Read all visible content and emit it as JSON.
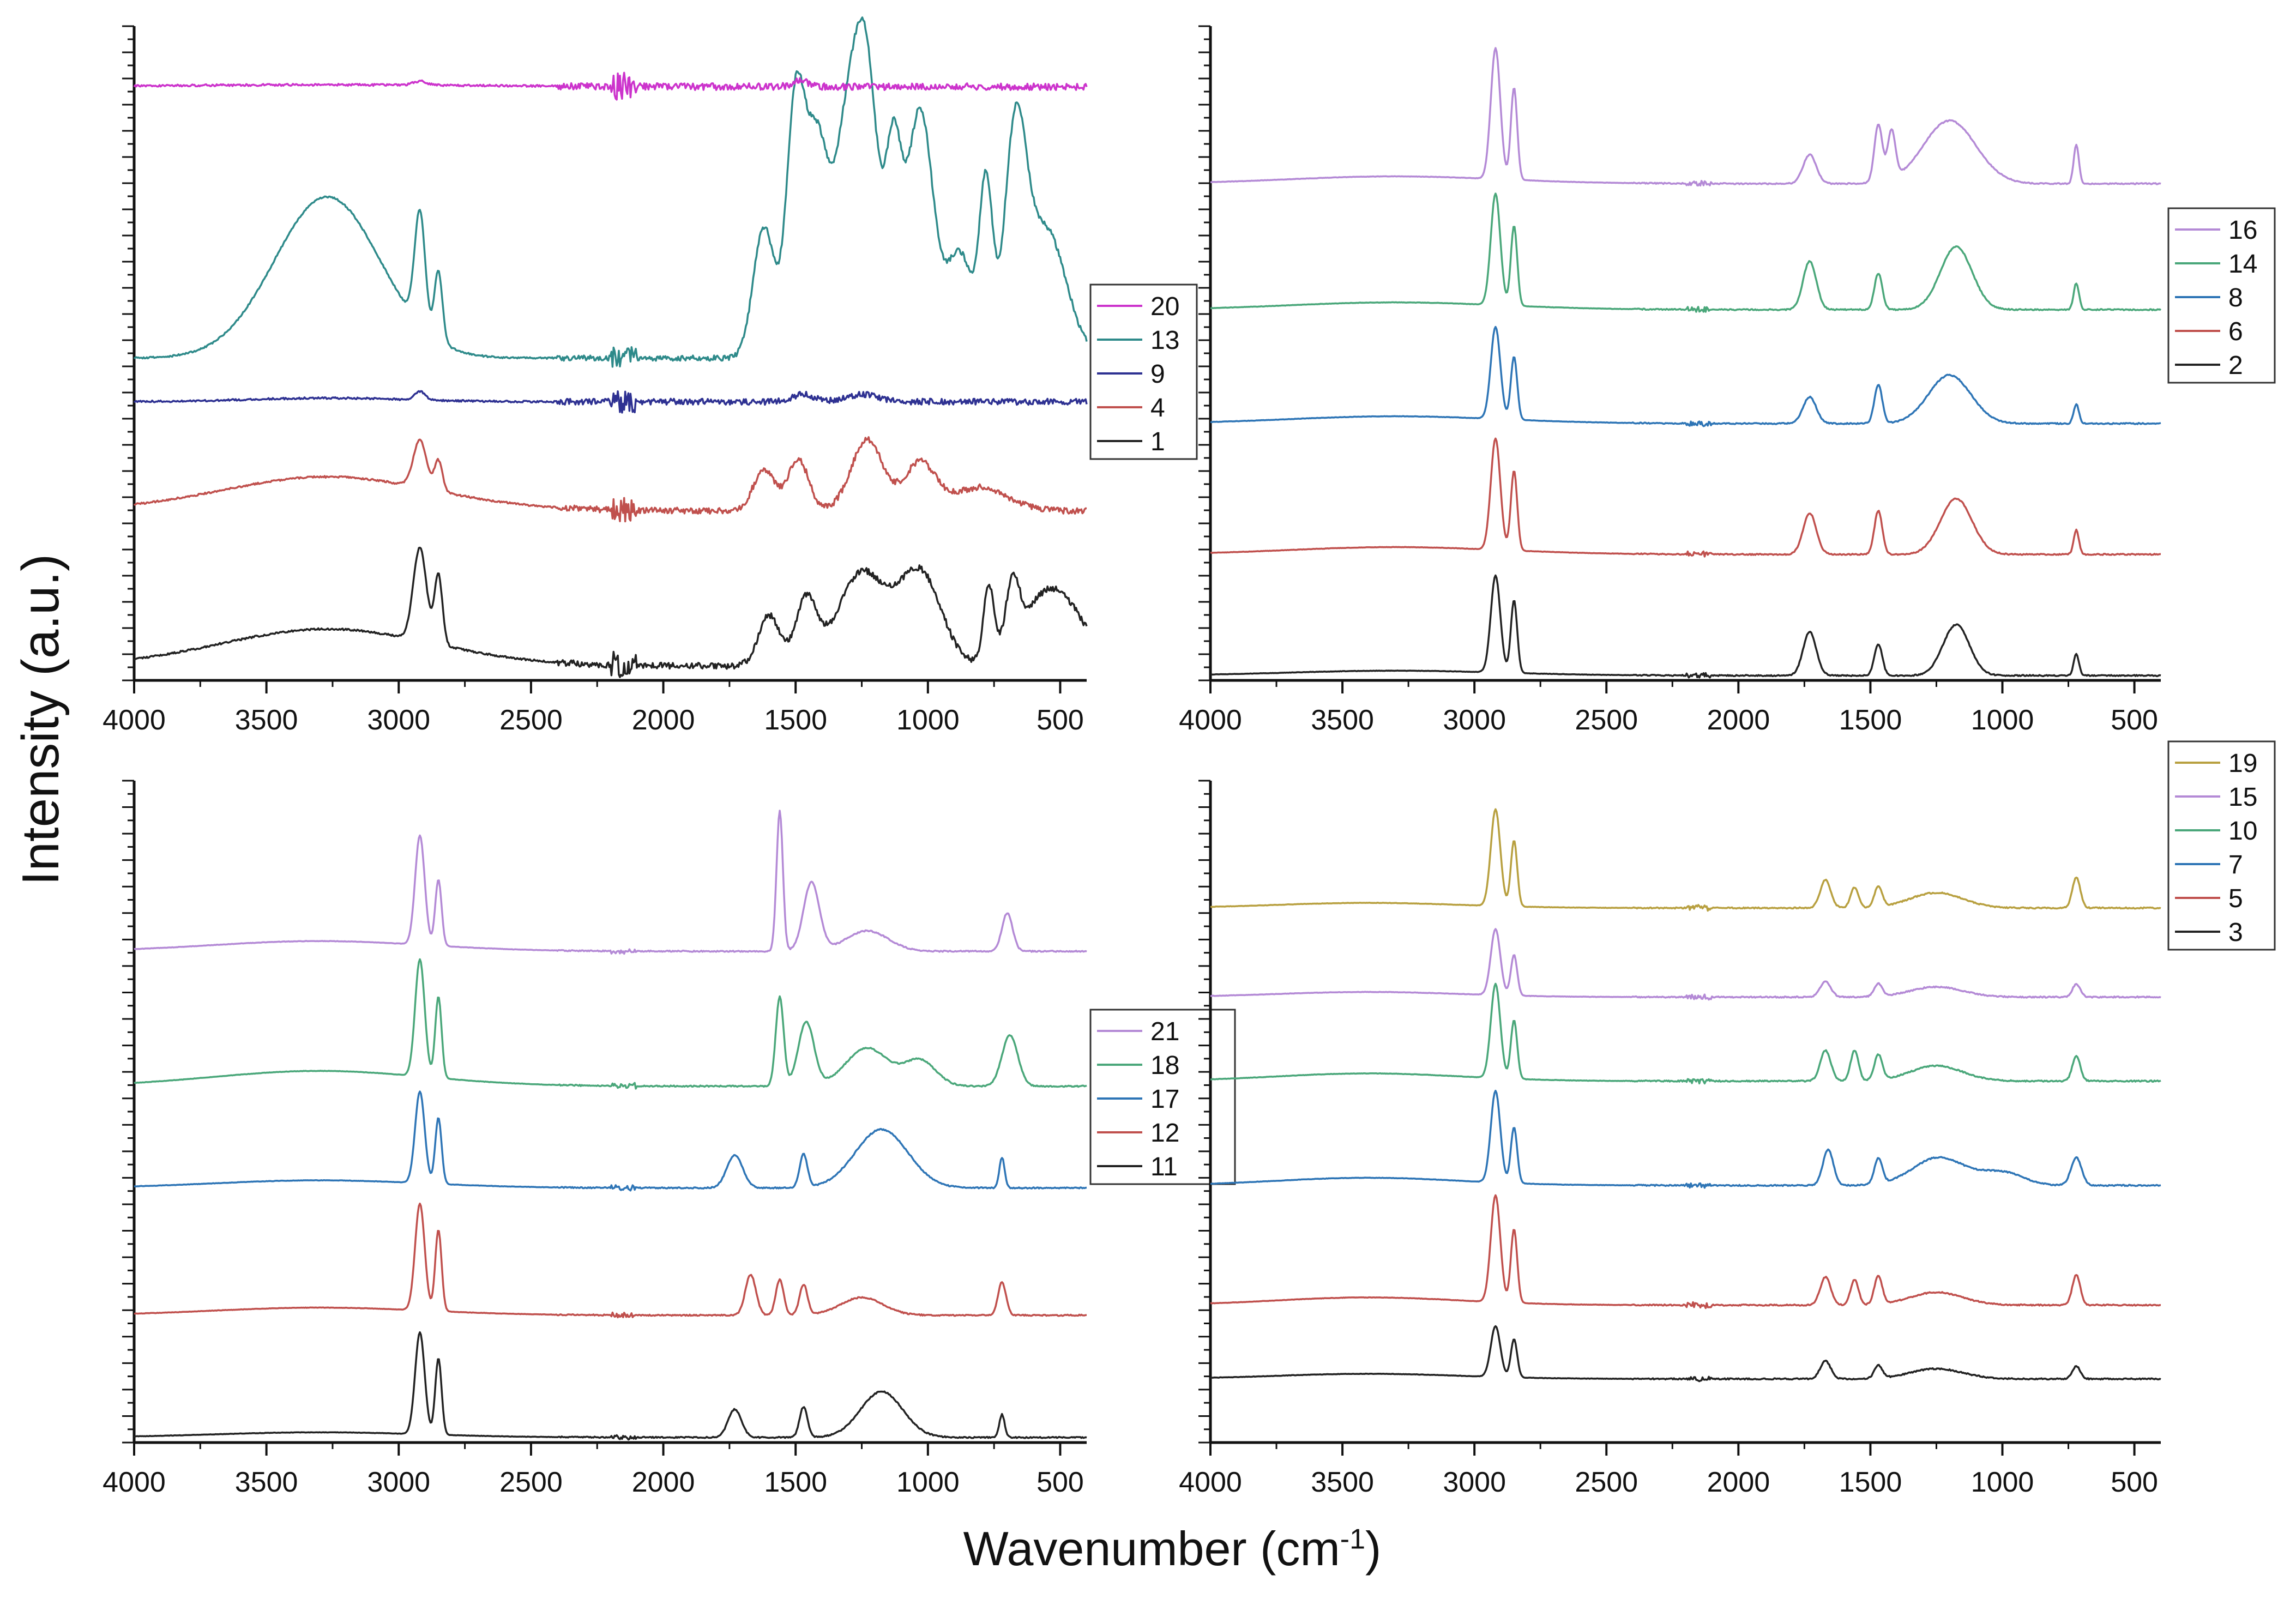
{
  "figure": {
    "ylabel": "Intensity (a.u.)",
    "xlabel_main": "Wavenumber (cm",
    "xlabel_sup": "-1",
    "xlabel_close": ")"
  },
  "chart_data": [
    {
      "type": "line",
      "panel": "top-left",
      "title": "",
      "xlabel": "Wavenumber (cm-1)",
      "ylabel": "Intensity (a.u.)",
      "xlim": [
        4000,
        400
      ],
      "ylim": [
        0,
        27
      ],
      "x_reversed": true,
      "x_ticks": [
        4000,
        3500,
        3000,
        2500,
        2000,
        1500,
        1000,
        500
      ],
      "y_tick_labels": false,
      "legend_position": "right-middle",
      "legend_order": [
        "20",
        "13",
        "9",
        "4",
        "1"
      ],
      "series": [
        {
          "name": "1",
          "color": "#222222",
          "baseline": 0.6,
          "scale": 1.6,
          "noise": 0.25,
          "peaks": [
            [
              3270,
              400,
              0.95
            ],
            [
              2920,
              25,
              2.4
            ],
            [
              2850,
              15,
              1.8
            ],
            [
              1600,
              40,
              1.3
            ],
            [
              1460,
              40,
              1.7
            ],
            [
              1250,
              90,
              2.4
            ],
            [
              1030,
              80,
              2.4
            ],
            [
              770,
              20,
              1.9
            ],
            [
              680,
              25,
              1.6
            ],
            [
              530,
              110,
              2.0
            ]
          ]
        },
        {
          "name": "4",
          "color": "#c0504d",
          "baseline": 7.0,
          "scale": 1.4,
          "noise": 0.25,
          "peaks": [
            [
              3270,
              400,
              1.0
            ],
            [
              2920,
              25,
              1.4
            ],
            [
              2850,
              15,
              0.9
            ],
            [
              1620,
              40,
              1.2
            ],
            [
              1490,
              40,
              1.5
            ],
            [
              1230,
              60,
              2.1
            ],
            [
              1030,
              60,
              1.4
            ],
            [
              800,
              100,
              0.7
            ]
          ]
        },
        {
          "name": "9",
          "color": "#2e3192",
          "baseline": 11.5,
          "scale": 1.0,
          "noise": 0.25,
          "peaks": [
            [
              3270,
              300,
              0.15
            ],
            [
              2920,
              20,
              0.35
            ],
            [
              1470,
              40,
              0.3
            ],
            [
              1250,
              60,
              0.3
            ]
          ]
        },
        {
          "name": "13",
          "color": "#2e8a8a",
          "baseline": 13.3,
          "scale": 1.8,
          "noise": 0.22,
          "peaks": [
            [
              3270,
              200,
              3.7
            ],
            [
              2920,
              20,
              2.6
            ],
            [
              2850,
              15,
              1.6
            ],
            [
              1620,
              40,
              3.0
            ],
            [
              1500,
              35,
              5.8
            ],
            [
              1420,
              40,
              4.6
            ],
            [
              1310,
              50,
              4.8
            ],
            [
              1230,
              45,
              6.0
            ],
            [
              1130,
              30,
              4.2
            ],
            [
              1030,
              50,
              5.7
            ],
            [
              880,
              50,
              2.4
            ],
            [
              780,
              25,
              3.8
            ],
            [
              670,
              40,
              4.6
            ],
            [
              560,
              80,
              3.0
            ]
          ]
        },
        {
          "name": "20",
          "color": "#cc33cc",
          "baseline": 24.5,
          "scale": 0.8,
          "noise": 0.28,
          "peaks": [
            [
              3270,
              600,
              0.1
            ],
            [
              2920,
              25,
              0.2
            ],
            [
              1480,
              30,
              0.3
            ]
          ]
        }
      ]
    },
    {
      "type": "line",
      "panel": "top-right",
      "title": "",
      "xlabel": "Wavenumber (cm-1)",
      "ylabel": "Intensity (a.u.)",
      "xlim": [
        4000,
        400
      ],
      "ylim": [
        0,
        27
      ],
      "x_reversed": true,
      "x_ticks": [
        4000,
        3500,
        3000,
        2500,
        2000,
        1500,
        1000,
        500
      ],
      "y_tick_labels": false,
      "legend_position": "right-upper",
      "legend_order": [
        "16",
        "14",
        "8",
        "6",
        "2"
      ],
      "series": [
        {
          "name": "2",
          "color": "#222222",
          "baseline": 0.2,
          "scale": 1.0,
          "noise": 0.05,
          "peaks": [
            [
              3300,
              400,
              0.2
            ],
            [
              2920,
              18,
              4.0
            ],
            [
              2850,
              12,
              3.0
            ],
            [
              1730,
              25,
              1.8
            ],
            [
              1470,
              15,
              1.3
            ],
            [
              1175,
              50,
              2.1
            ],
            [
              720,
              10,
              0.9
            ]
          ]
        },
        {
          "name": "6",
          "color": "#c0504d",
          "baseline": 5.2,
          "scale": 1.0,
          "noise": 0.05,
          "peaks": [
            [
              3300,
              400,
              0.3
            ],
            [
              2920,
              18,
              4.6
            ],
            [
              2850,
              12,
              3.3
            ],
            [
              1730,
              25,
              1.7
            ],
            [
              1470,
              15,
              1.8
            ],
            [
              1175,
              60,
              2.3
            ],
            [
              720,
              10,
              1.0
            ]
          ]
        },
        {
          "name": "8",
          "color": "#2e75b6",
          "baseline": 10.6,
          "scale": 1.0,
          "noise": 0.05,
          "peaks": [
            [
              3300,
              400,
              0.3
            ],
            [
              2920,
              18,
              3.8
            ],
            [
              2850,
              12,
              2.6
            ],
            [
              1730,
              25,
              1.1
            ],
            [
              1470,
              15,
              1.6
            ],
            [
              1200,
              80,
              2.0
            ],
            [
              720,
              10,
              0.8
            ]
          ]
        },
        {
          "name": "14",
          "color": "#4aa77a",
          "baseline": 15.3,
          "scale": 1.0,
          "noise": 0.05,
          "peaks": [
            [
              3300,
              400,
              0.3
            ],
            [
              2920,
              18,
              4.6
            ],
            [
              2850,
              12,
              3.3
            ],
            [
              1730,
              25,
              2.0
            ],
            [
              1470,
              15,
              1.5
            ],
            [
              1175,
              60,
              2.6
            ],
            [
              720,
              10,
              1.1
            ]
          ]
        },
        {
          "name": "16",
          "color": "#b48ad6",
          "baseline": 20.5,
          "scale": 1.0,
          "noise": 0.05,
          "peaks": [
            [
              3300,
              400,
              0.3
            ],
            [
              2920,
              18,
              5.4
            ],
            [
              2850,
              12,
              3.8
            ],
            [
              1730,
              25,
              1.2
            ],
            [
              1470,
              15,
              2.4
            ],
            [
              1420,
              15,
              2.0
            ],
            [
              1200,
              100,
              2.6
            ],
            [
              720,
              10,
              1.6
            ]
          ]
        }
      ]
    },
    {
      "type": "line",
      "panel": "bottom-left",
      "title": "",
      "xlabel": "Wavenumber (cm-1)",
      "ylabel": "Intensity (a.u.)",
      "xlim": [
        4000,
        400
      ],
      "ylim": [
        0,
        26
      ],
      "x_reversed": true,
      "x_ticks": [
        4000,
        3500,
        3000,
        2500,
        2000,
        1500,
        1000,
        500
      ],
      "y_tick_labels": false,
      "legend_position": "right-middle",
      "legend_order": [
        "21",
        "18",
        "17",
        "12",
        "11"
      ],
      "series": [
        {
          "name": "11",
          "color": "#222222",
          "baseline": 0.2,
          "scale": 1.0,
          "noise": 0.05,
          "peaks": [
            [
              3300,
              400,
              0.2
            ],
            [
              2920,
              18,
              4.0
            ],
            [
              2850,
              12,
              3.0
            ],
            [
              1730,
              25,
              1.1
            ],
            [
              1470,
              15,
              1.2
            ],
            [
              1175,
              80,
              1.8
            ],
            [
              720,
              10,
              0.9
            ]
          ]
        },
        {
          "name": "12",
          "color": "#c0504d",
          "baseline": 5.0,
          "scale": 1.0,
          "noise": 0.05,
          "peaks": [
            [
              3300,
              400,
              0.3
            ],
            [
              2920,
              18,
              4.2
            ],
            [
              2850,
              12,
              3.2
            ],
            [
              1670,
              20,
              1.6
            ],
            [
              1560,
              15,
              1.4
            ],
            [
              1470,
              15,
              1.2
            ],
            [
              1250,
              80,
              0.7
            ],
            [
              720,
              15,
              1.3
            ]
          ]
        },
        {
          "name": "17",
          "color": "#2e75b6",
          "baseline": 10.0,
          "scale": 1.0,
          "noise": 0.05,
          "peaks": [
            [
              3300,
              400,
              0.3
            ],
            [
              2920,
              18,
              3.6
            ],
            [
              2850,
              12,
              2.6
            ],
            [
              1730,
              30,
              1.3
            ],
            [
              1470,
              15,
              1.3
            ],
            [
              1175,
              100,
              2.3
            ],
            [
              720,
              10,
              1.2
            ]
          ]
        },
        {
          "name": "18",
          "color": "#4aa77a",
          "baseline": 14.0,
          "scale": 1.0,
          "noise": 0.05,
          "peaks": [
            [
              3300,
              400,
              0.6
            ],
            [
              2920,
              18,
              4.6
            ],
            [
              2850,
              12,
              3.2
            ],
            [
              1560,
              15,
              3.5
            ],
            [
              1460,
              30,
              2.5
            ],
            [
              1230,
              80,
              1.5
            ],
            [
              1030,
              60,
              1.0
            ],
            [
              690,
              30,
              2.0
            ]
          ]
        },
        {
          "name": "21",
          "color": "#b48ad6",
          "baseline": 19.3,
          "scale": 1.0,
          "noise": 0.05,
          "peaks": [
            [
              3300,
              400,
              0.4
            ],
            [
              2920,
              18,
              4.3
            ],
            [
              2850,
              12,
              2.6
            ],
            [
              1560,
              12,
              5.5
            ],
            [
              1440,
              30,
              2.7
            ],
            [
              1230,
              80,
              0.8
            ],
            [
              700,
              20,
              1.5
            ]
          ]
        }
      ]
    },
    {
      "type": "line",
      "panel": "bottom-right",
      "title": "",
      "xlabel": "Wavenumber (cm-1)",
      "ylabel": "Intensity (a.u.)",
      "xlim": [
        4000,
        400
      ],
      "ylim": [
        0,
        26
      ],
      "x_reversed": true,
      "x_ticks": [
        4000,
        3500,
        3000,
        2500,
        2000,
        1500,
        1000,
        500
      ],
      "y_tick_labels": false,
      "legend_position": "top-right",
      "legend_order": [
        "19",
        "15",
        "10",
        "7",
        "5",
        "3"
      ],
      "series": [
        {
          "name": "3",
          "color": "#222222",
          "baseline": 2.5,
          "scale": 1.0,
          "noise": 0.05,
          "peaks": [
            [
              3400,
              350,
              0.2
            ],
            [
              2920,
              18,
              2.0
            ],
            [
              2850,
              12,
              1.5
            ],
            [
              1670,
              20,
              0.7
            ],
            [
              1470,
              15,
              0.5
            ],
            [
              1250,
              100,
              0.4
            ],
            [
              720,
              15,
              0.5
            ]
          ]
        },
        {
          "name": "5",
          "color": "#c0504d",
          "baseline": 5.4,
          "scale": 1.0,
          "noise": 0.05,
          "peaks": [
            [
              3400,
              350,
              0.3
            ],
            [
              2920,
              18,
              4.2
            ],
            [
              2850,
              12,
              2.9
            ],
            [
              1670,
              20,
              1.1
            ],
            [
              1560,
              15,
              1.0
            ],
            [
              1470,
              15,
              1.1
            ],
            [
              1250,
              100,
              0.5
            ],
            [
              720,
              15,
              1.2
            ]
          ]
        },
        {
          "name": "7",
          "color": "#2e75b6",
          "baseline": 10.1,
          "scale": 1.0,
          "noise": 0.05,
          "peaks": [
            [
              3400,
              350,
              0.3
            ],
            [
              2920,
              18,
              3.6
            ],
            [
              2850,
              12,
              2.2
            ],
            [
              1660,
              20,
              1.4
            ],
            [
              1470,
              15,
              1.0
            ],
            [
              1240,
              100,
              1.1
            ],
            [
              1000,
              80,
              0.5
            ],
            [
              720,
              20,
              1.1
            ]
          ]
        },
        {
          "name": "10",
          "color": "#4aa77a",
          "baseline": 14.2,
          "scale": 1.0,
          "noise": 0.05,
          "peaks": [
            [
              3400,
              350,
              0.3
            ],
            [
              2920,
              18,
              3.7
            ],
            [
              2850,
              12,
              2.3
            ],
            [
              1670,
              20,
              1.2
            ],
            [
              1560,
              15,
              1.2
            ],
            [
              1470,
              15,
              1.0
            ],
            [
              1250,
              100,
              0.6
            ],
            [
              720,
              15,
              1.0
            ]
          ]
        },
        {
          "name": "15",
          "color": "#b48ad6",
          "baseline": 17.5,
          "scale": 1.0,
          "noise": 0.05,
          "peaks": [
            [
              3400,
              350,
              0.2
            ],
            [
              2920,
              18,
              2.6
            ],
            [
              2850,
              12,
              1.6
            ],
            [
              1670,
              20,
              0.6
            ],
            [
              1470,
              15,
              0.5
            ],
            [
              1250,
              100,
              0.4
            ],
            [
              720,
              15,
              0.5
            ]
          ]
        },
        {
          "name": "19",
          "color": "#b8a040",
          "baseline": 21.0,
          "scale": 1.0,
          "noise": 0.05,
          "peaks": [
            [
              3400,
              350,
              0.2
            ],
            [
              2920,
              18,
              3.8
            ],
            [
              2850,
              12,
              2.6
            ],
            [
              1670,
              20,
              1.1
            ],
            [
              1560,
              15,
              0.8
            ],
            [
              1470,
              15,
              0.8
            ],
            [
              1250,
              100,
              0.6
            ],
            [
              720,
              15,
              1.2
            ]
          ]
        }
      ]
    }
  ]
}
